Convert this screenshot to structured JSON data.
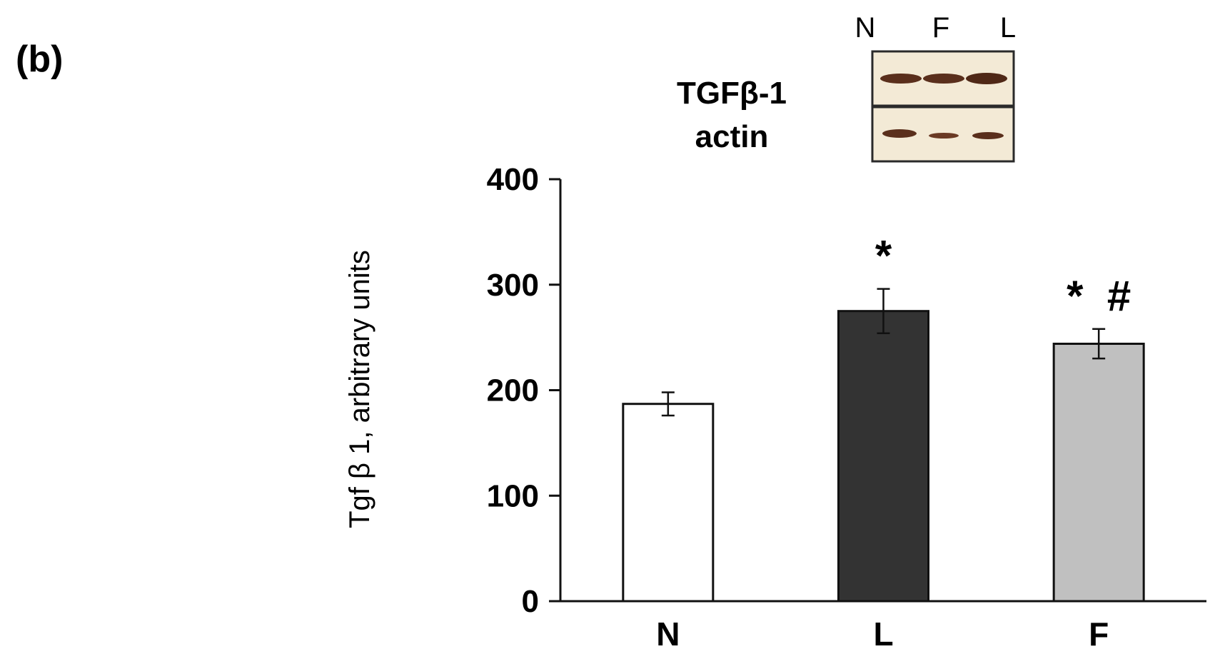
{
  "panel_label": "(b)",
  "blot": {
    "lanes": [
      "N",
      "F",
      "L"
    ],
    "rows": [
      {
        "label": "TGFβ-1",
        "band_color": "#5a2f1c"
      },
      {
        "label": "actin",
        "band_color": "#5a2f1c"
      }
    ],
    "frame_color": "#2a2a2a",
    "background_color": "#f3ead6"
  },
  "chart_data": {
    "type": "bar",
    "categories": [
      "N",
      "L",
      "F"
    ],
    "values": [
      187,
      275,
      244
    ],
    "errors": [
      11,
      21,
      14
    ],
    "bar_colors": [
      "#ffffff",
      "#333333",
      "#c0c0c0"
    ],
    "annotations": [
      "",
      "*",
      "*  #"
    ],
    "ylabel": "Tgf β 1, arbitrary units",
    "ylim": [
      0,
      400
    ],
    "yticks": [
      0,
      100,
      200,
      300,
      400
    ],
    "grid": false
  }
}
